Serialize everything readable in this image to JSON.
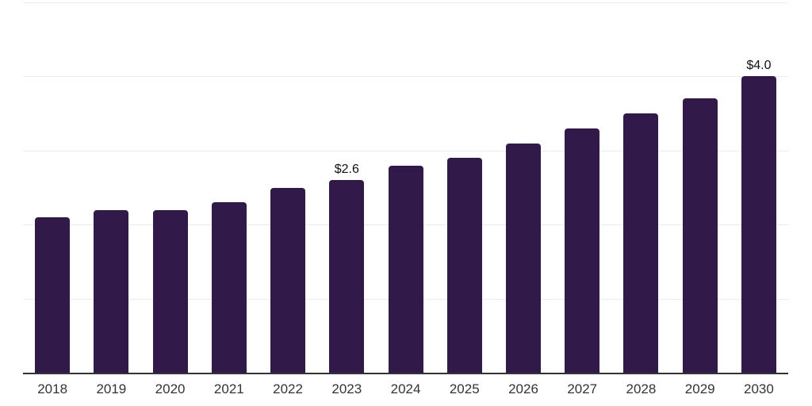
{
  "chart_data": {
    "type": "bar",
    "title": "",
    "xlabel": "",
    "ylabel": "",
    "categories": [
      "2018",
      "2019",
      "2020",
      "2021",
      "2022",
      "2023",
      "2024",
      "2025",
      "2026",
      "2027",
      "2028",
      "2029",
      "2030"
    ],
    "values": [
      2.1,
      2.2,
      2.2,
      2.3,
      2.5,
      2.6,
      2.8,
      2.9,
      3.1,
      3.3,
      3.5,
      3.7,
      4.0
    ],
    "data_labels": [
      {
        "category": "2023",
        "text": "$2.6"
      },
      {
        "category": "2030",
        "text": "$4.0"
      }
    ],
    "ylim": [
      0,
      5
    ],
    "gridline_step": 1,
    "grid": "horizontal",
    "legend": "none",
    "y_axis_ticks_visible": false,
    "colors": {
      "bar": "#31194a",
      "gridline": "#ececec",
      "axis_line": "#333333",
      "tick_label": "#333333",
      "data_label": "#111111",
      "background": "#ffffff"
    }
  }
}
